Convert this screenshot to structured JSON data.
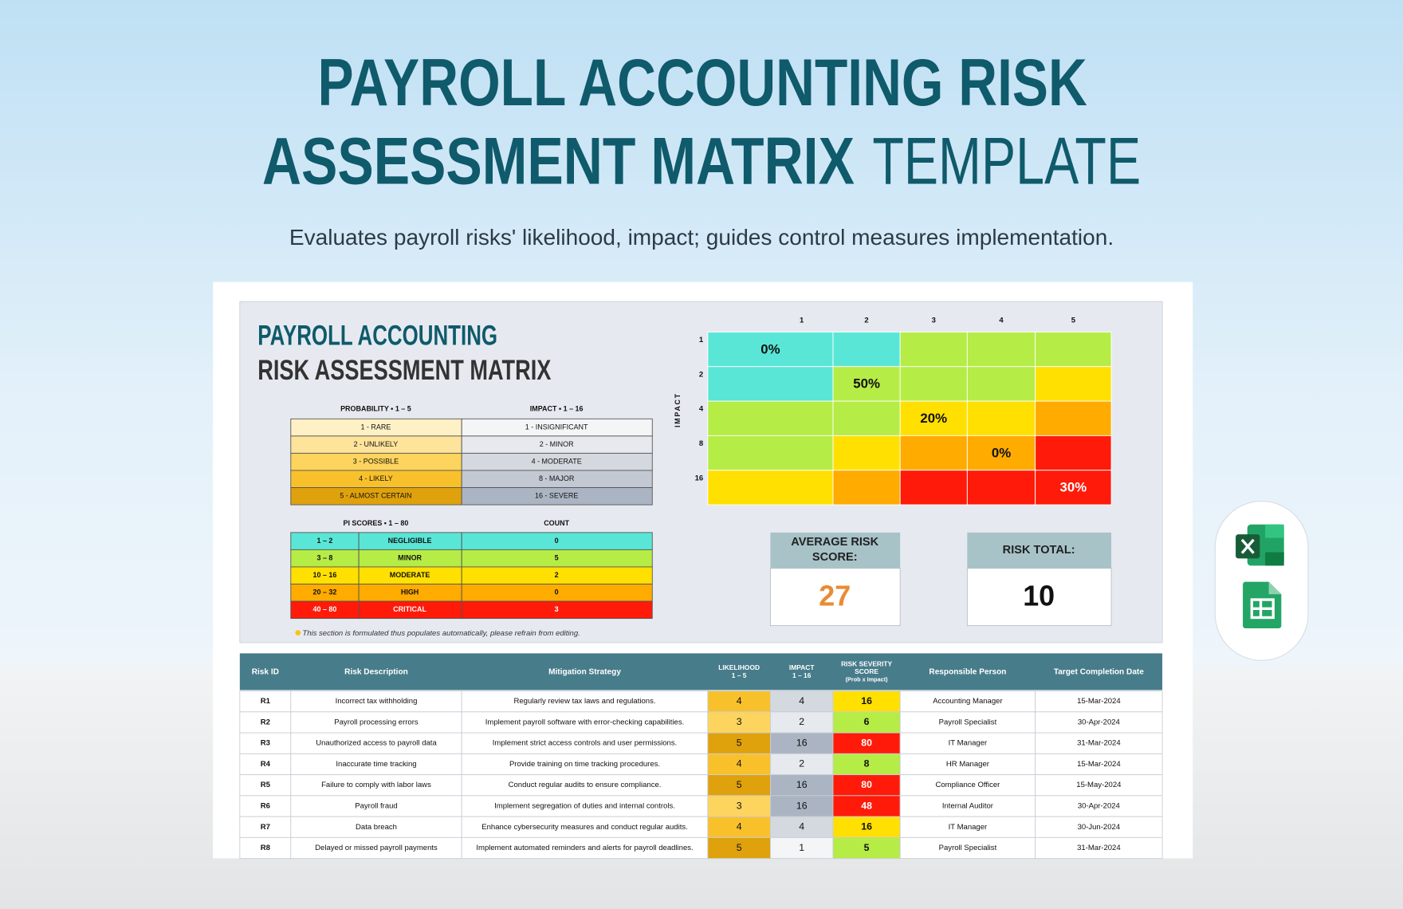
{
  "header": {
    "title_bold_1": "PAYROLL ACCOUNTING RISK",
    "title_bold_2": "ASSESSMENT MATRIX",
    "title_light": "TEMPLATE",
    "subtitle": "Evaluates payroll risks' likelihood, impact; guides control measures implementation."
  },
  "sheet": {
    "title_1": "PAYROLL ACCOUNTING",
    "title_2": "RISK ASSESSMENT MATRIX",
    "probability": {
      "header": "PROBABILITY  •  1 – 5",
      "rows": [
        {
          "label": "1 - RARE",
          "color": "#fff1c6"
        },
        {
          "label": "2 - UNLIKELY",
          "color": "#fee39a"
        },
        {
          "label": "3 - POSSIBLE",
          "color": "#fdd45e"
        },
        {
          "label": "4 - LIKELY",
          "color": "#f8c12c"
        },
        {
          "label": "5 - ALMOST CERTAIN",
          "color": "#dfa10c"
        }
      ]
    },
    "impact": {
      "header": "IMPACT  •  1 – 16",
      "rows": [
        {
          "label": "1 - INSIGNIFICANT",
          "color": "#f4f5f7"
        },
        {
          "label": "2 - MINOR",
          "color": "#e6e9ee"
        },
        {
          "label": "4 - MODERATE",
          "color": "#d4d8df"
        },
        {
          "label": "8 - MAJOR",
          "color": "#c3c9d3"
        },
        {
          "label": "16 - SEVERE",
          "color": "#abb4c2"
        }
      ]
    },
    "pi_scores": {
      "header": "PI SCORES  •  1 – 80",
      "count_header": "COUNT",
      "rows": [
        {
          "range": "1 – 2",
          "level": "NEGLIGIBLE",
          "count": 0,
          "color": "#5ae6d6",
          "text_color": "#111"
        },
        {
          "range": "3 – 8",
          "level": "MINOR",
          "count": 5,
          "color": "#b5ec46",
          "text_color": "#111"
        },
        {
          "range": "10 – 16",
          "level": "MODERATE",
          "count": 2,
          "color": "#ffe000",
          "text_color": "#111"
        },
        {
          "range": "20 – 32",
          "level": "HIGH",
          "count": 0,
          "color": "#ffab00",
          "text_color": "#111"
        },
        {
          "range": "40 – 80",
          "level": "CRITICAL",
          "count": 3,
          "color": "#ff1a0a",
          "text_color": "#ffffff"
        }
      ]
    },
    "note": "This section is formulated thus populates automatically, please refrain from editing.",
    "matrix": {
      "axis_label": "IMPACT",
      "columns": [
        1,
        2,
        3,
        4,
        5
      ],
      "rows": [
        1,
        2,
        4,
        8,
        16
      ],
      "cells": [
        [
          "0%",
          null,
          null,
          null,
          null
        ],
        [
          null,
          "50%",
          null,
          null,
          null
        ],
        [
          null,
          null,
          "20%",
          null,
          null
        ],
        [
          null,
          null,
          null,
          "0%",
          null
        ],
        [
          null,
          null,
          null,
          null,
          "30%"
        ]
      ]
    },
    "average": {
      "label": [
        "AVERAGE RISK",
        "SCORE:"
      ],
      "value": 27
    },
    "total": {
      "label": "RISK TOTAL:",
      "value": 10
    }
  },
  "table": {
    "columns": [
      [
        "Risk ID"
      ],
      [
        "Risk Description"
      ],
      [
        "Mitigation Strategy"
      ],
      [
        "LIKELIHOOD",
        "1 – 5"
      ],
      [
        "IMPACT",
        "1 – 16"
      ],
      [
        "RISK SEVERITY",
        "SCORE",
        "(Prob  x  Impact)"
      ],
      [
        "Responsible Person"
      ],
      [
        "Target Completion Date"
      ]
    ],
    "rows": [
      [
        "R1",
        "Incorrect tax withholding",
        "Regularly review tax laws and regulations.",
        4,
        4,
        16,
        "Accounting Manager",
        "15-Mar-2024"
      ],
      [
        "R2",
        "Payroll processing errors",
        "Implement payroll software with error-checking capabilities.",
        3,
        2,
        6,
        "Payroll Specialist",
        "30-Apr-2024"
      ],
      [
        "R3",
        "Unauthorized access to payroll data",
        "Implement strict access controls and user permissions.",
        5,
        16,
        80,
        "IT Manager",
        "31-Mar-2024"
      ],
      [
        "R4",
        "Inaccurate time tracking",
        "Provide training on time tracking procedures.",
        4,
        2,
        8,
        "HR Manager",
        "15-Mar-2024"
      ],
      [
        "R5",
        "Failure to comply with labor laws",
        "Conduct regular audits to ensure compliance.",
        5,
        16,
        80,
        "Compliance Officer",
        "15-May-2024"
      ],
      [
        "R6",
        "Payroll fraud",
        "Implement segregation of duties and internal controls.",
        3,
        16,
        48,
        "Internal Auditor",
        "30-Apr-2024"
      ],
      [
        "R7",
        "Data breach",
        "Enhance cybersecurity measures and conduct regular audits.",
        4,
        4,
        16,
        "IT Manager",
        "30-Jun-2024"
      ],
      [
        "R8",
        "Delayed or missed payroll payments",
        "Implement automated reminders and alerts for payroll deadlines.",
        5,
        1,
        5,
        "Payroll Specialist",
        "31-Mar-2024"
      ]
    ]
  }
}
